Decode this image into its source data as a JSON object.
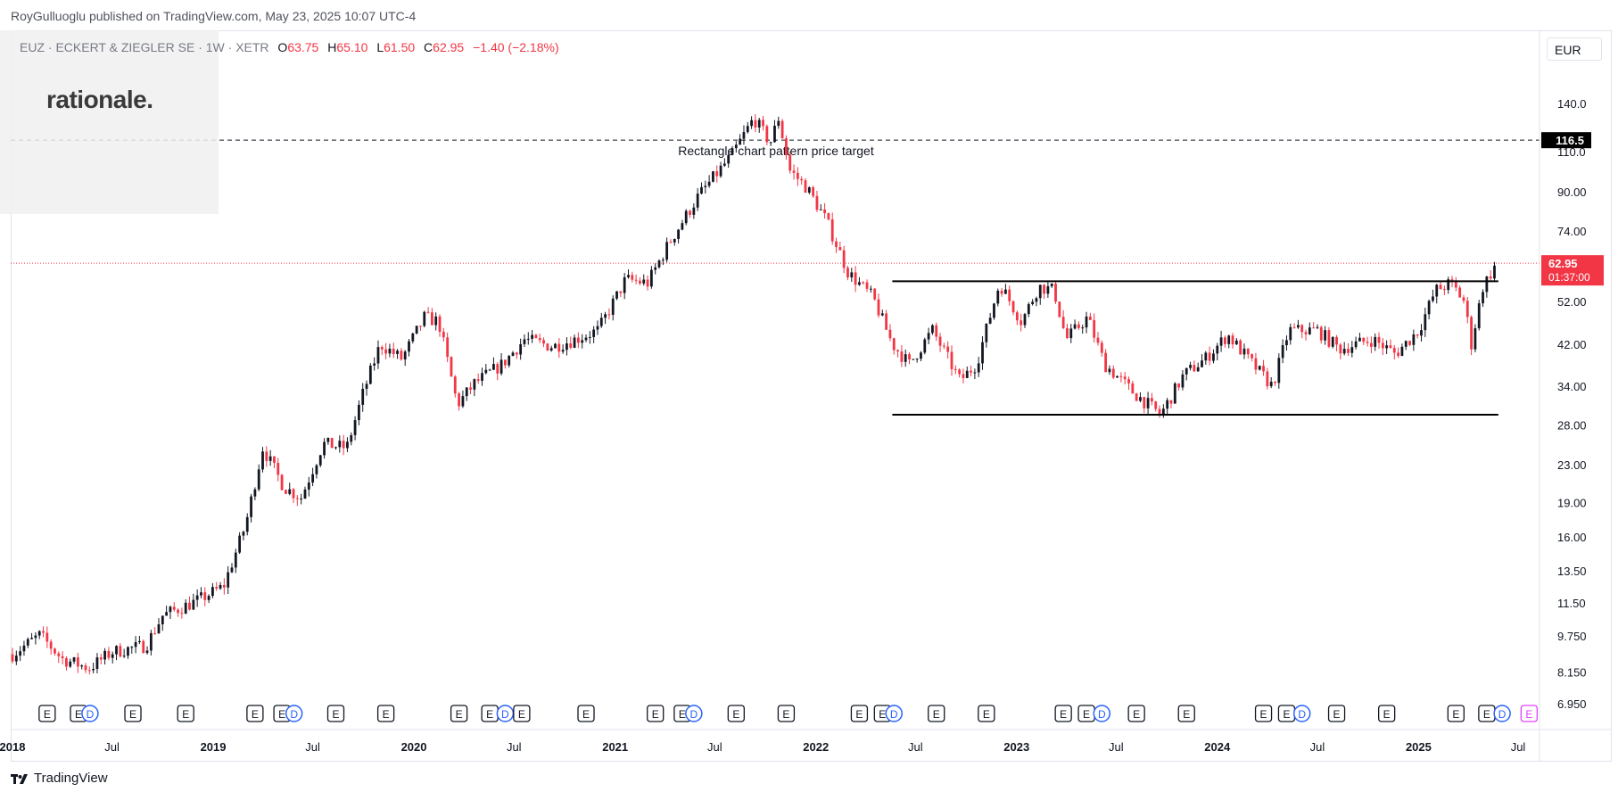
{
  "header": {
    "published": "RoyGulluoglu published on TradingView.com, May 23, 2025 10:07 UTC-4"
  },
  "legend": {
    "symbol": "EUZ · ECKERT & ZIEGLER SE · 1W · XETR",
    "o_label": "O",
    "o_value": "63.75",
    "h_label": "H",
    "h_value": "65.10",
    "l_label": "L",
    "l_value": "61.50",
    "c_label": "C",
    "c_value": "62.95",
    "change": "−1.40 (−2.18%)"
  },
  "logo_text": "rationale.",
  "currency": "EUR",
  "footer": {
    "brand": "TradingView"
  },
  "colors": {
    "up": "#131722",
    "down": "#f23645",
    "price_badge": "#f23645",
    "target_badge": "#000000",
    "event_blue": "#2962ff",
    "event_pink": "#e040fb",
    "event_orange": "#ff9800"
  },
  "chart_data": {
    "type": "candlestick",
    "scale": "log",
    "timeframe": "1W",
    "y_ticks": [
      "140.0",
      "110.0",
      "90.00",
      "74.00",
      "52.00",
      "42.00",
      "34.00",
      "28.00",
      "23.00",
      "19.00",
      "16.00",
      "13.50",
      "11.50",
      "9.750",
      "8.150",
      "6.950"
    ],
    "y_tick_values": [
      140,
      110,
      90,
      74,
      52,
      42,
      34,
      28,
      23,
      19,
      16,
      13.5,
      11.5,
      9.75,
      8.15,
      6.95
    ],
    "x_ticks": [
      {
        "label": "2018",
        "date": "2018-01-01",
        "bold": true
      },
      {
        "label": "Jul",
        "date": "2018-07-01",
        "bold": false
      },
      {
        "label": "2019",
        "date": "2019-01-01",
        "bold": true
      },
      {
        "label": "Jul",
        "date": "2019-07-01",
        "bold": false
      },
      {
        "label": "2020",
        "date": "2020-01-01",
        "bold": true
      },
      {
        "label": "Jul",
        "date": "2020-07-01",
        "bold": false
      },
      {
        "label": "2021",
        "date": "2021-01-01",
        "bold": true
      },
      {
        "label": "Jul",
        "date": "2021-07-01",
        "bold": false
      },
      {
        "label": "2022",
        "date": "2022-01-01",
        "bold": true
      },
      {
        "label": "Jul",
        "date": "2022-07-01",
        "bold": false
      },
      {
        "label": "2023",
        "date": "2023-01-01",
        "bold": true
      },
      {
        "label": "Jul",
        "date": "2023-07-01",
        "bold": false
      },
      {
        "label": "2024",
        "date": "2024-01-01",
        "bold": true
      },
      {
        "label": "Jul",
        "date": "2024-07-01",
        "bold": false
      },
      {
        "label": "2025",
        "date": "2025-01-01",
        "bold": true
      },
      {
        "label": "Jul",
        "date": "2025-07-01",
        "bold": false
      }
    ],
    "price_path": [
      [
        "2018-01-01",
        8.9
      ],
      [
        "2018-02-20",
        9.8
      ],
      [
        "2018-04-01",
        8.7
      ],
      [
        "2018-05-20",
        8.3
      ],
      [
        "2018-07-01",
        9.0
      ],
      [
        "2018-09-01",
        9.3
      ],
      [
        "2018-10-01",
        10.8
      ],
      [
        "2018-12-01",
        11.6
      ],
      [
        "2019-01-20",
        12.5
      ],
      [
        "2019-03-01",
        17.0
      ],
      [
        "2019-04-01",
        25.0
      ],
      [
        "2019-05-10",
        20.5
      ],
      [
        "2019-06-10",
        19.5
      ],
      [
        "2019-07-20",
        25.5
      ],
      [
        "2019-09-01",
        25.0
      ],
      [
        "2019-10-01",
        33.0
      ],
      [
        "2019-11-01",
        42.0
      ],
      [
        "2019-12-10",
        39.0
      ],
      [
        "2020-01-20",
        48.0
      ],
      [
        "2020-02-15",
        47.0
      ],
      [
        "2020-03-20",
        31.0
      ],
      [
        "2020-04-20",
        34.5
      ],
      [
        "2020-06-10",
        38.0
      ],
      [
        "2020-07-20",
        43.0
      ],
      [
        "2020-09-10",
        41.5
      ],
      [
        "2020-10-20",
        43.0
      ],
      [
        "2020-12-01",
        45.0
      ],
      [
        "2021-01-20",
        58.0
      ],
      [
        "2021-03-01",
        57.0
      ],
      [
        "2021-04-10",
        70.0
      ],
      [
        "2021-06-01",
        88.0
      ],
      [
        "2021-08-01",
        108.0
      ],
      [
        "2021-09-10",
        130.0
      ],
      [
        "2021-10-10",
        115.0
      ],
      [
        "2021-10-25",
        130.0
      ],
      [
        "2021-11-15",
        100.0
      ],
      [
        "2021-12-15",
        92.0
      ],
      [
        "2022-01-20",
        78.0
      ],
      [
        "2022-03-01",
        60.0
      ],
      [
        "2022-04-15",
        53.0
      ],
      [
        "2022-05-20",
        42.0
      ],
      [
        "2022-06-20",
        38.0
      ],
      [
        "2022-08-01",
        45.0
      ],
      [
        "2022-09-20",
        35.0
      ],
      [
        "2022-10-20",
        38.0
      ],
      [
        "2022-12-01",
        57.0
      ],
      [
        "2023-01-10",
        47.0
      ],
      [
        "2023-02-10",
        56.0
      ],
      [
        "2023-03-10",
        55.0
      ],
      [
        "2023-04-01",
        43.0
      ],
      [
        "2023-05-10",
        48.0
      ],
      [
        "2023-06-10",
        38.0
      ],
      [
        "2023-08-01",
        33.0
      ],
      [
        "2023-09-20",
        29.5
      ],
      [
        "2023-11-01",
        36.0
      ],
      [
        "2023-12-10",
        39.0
      ],
      [
        "2024-01-20",
        44.0
      ],
      [
        "2024-03-01",
        38.5
      ],
      [
        "2024-04-10",
        34.0
      ],
      [
        "2024-05-10",
        45.0
      ],
      [
        "2024-07-01",
        45.0
      ],
      [
        "2024-08-10",
        41.0
      ],
      [
        "2024-10-10",
        43.0
      ],
      [
        "2024-11-20",
        40.0
      ],
      [
        "2025-01-01",
        45.0
      ],
      [
        "2025-02-01",
        55.0
      ],
      [
        "2025-03-01",
        57.0
      ],
      [
        "2025-03-25",
        52.0
      ],
      [
        "2025-04-07",
        42.0
      ],
      [
        "2025-04-28",
        56.0
      ],
      [
        "2025-05-23",
        62.95
      ]
    ],
    "rectangle": {
      "start": "2022-05-20",
      "end": "2025-05-26",
      "top": 57.5,
      "bottom": 29.5
    },
    "target_line": {
      "value": 116.5,
      "label": "Rectangle chart pattern price target"
    },
    "target_badge": "116.5",
    "last_price": {
      "value": 62.95,
      "label": "62.95",
      "countdown": "01:37:00"
    },
    "events": [
      {
        "date": "2018-03-05",
        "type": "E"
      },
      {
        "date": "2018-05-01",
        "type": "E"
      },
      {
        "date": "2018-05-22",
        "type": "D"
      },
      {
        "date": "2018-08-08",
        "type": "E"
      },
      {
        "date": "2018-11-12",
        "type": "E"
      },
      {
        "date": "2019-03-18",
        "type": "E"
      },
      {
        "date": "2019-05-06",
        "type": "E"
      },
      {
        "date": "2019-05-28",
        "type": "D"
      },
      {
        "date": "2019-08-12",
        "type": "E"
      },
      {
        "date": "2019-11-11",
        "type": "E"
      },
      {
        "date": "2020-03-23",
        "type": "E"
      },
      {
        "date": "2020-05-18",
        "type": "E"
      },
      {
        "date": "2020-06-15",
        "type": "D"
      },
      {
        "date": "2020-07-15",
        "type": "E"
      },
      {
        "date": "2020-11-09",
        "type": "E"
      },
      {
        "date": "2021-03-15",
        "type": "E"
      },
      {
        "date": "2021-05-03",
        "type": "E"
      },
      {
        "date": "2021-05-24",
        "type": "D"
      },
      {
        "date": "2021-08-09",
        "type": "E"
      },
      {
        "date": "2021-11-08",
        "type": "E"
      },
      {
        "date": "2022-03-21",
        "type": "E"
      },
      {
        "date": "2022-05-02",
        "type": "E"
      },
      {
        "date": "2022-05-23",
        "type": "D"
      },
      {
        "date": "2022-08-08",
        "type": "E"
      },
      {
        "date": "2022-11-07",
        "type": "E"
      },
      {
        "date": "2023-03-27",
        "type": "E"
      },
      {
        "date": "2023-05-08",
        "type": "E"
      },
      {
        "date": "2023-06-05",
        "type": "D"
      },
      {
        "date": "2023-08-07",
        "type": "E"
      },
      {
        "date": "2023-11-06",
        "type": "E"
      },
      {
        "date": "2024-03-25",
        "type": "E"
      },
      {
        "date": "2024-05-06",
        "type": "E"
      },
      {
        "date": "2024-06-03",
        "type": "D"
      },
      {
        "date": "2024-08-05",
        "type": "E"
      },
      {
        "date": "2024-11-04",
        "type": "E"
      },
      {
        "date": "2025-03-10",
        "type": "E"
      },
      {
        "date": "2025-05-05",
        "type": "E"
      },
      {
        "date": "2025-06-02",
        "type": "D"
      },
      {
        "date": "2025-07-21",
        "type": "E"
      }
    ]
  }
}
